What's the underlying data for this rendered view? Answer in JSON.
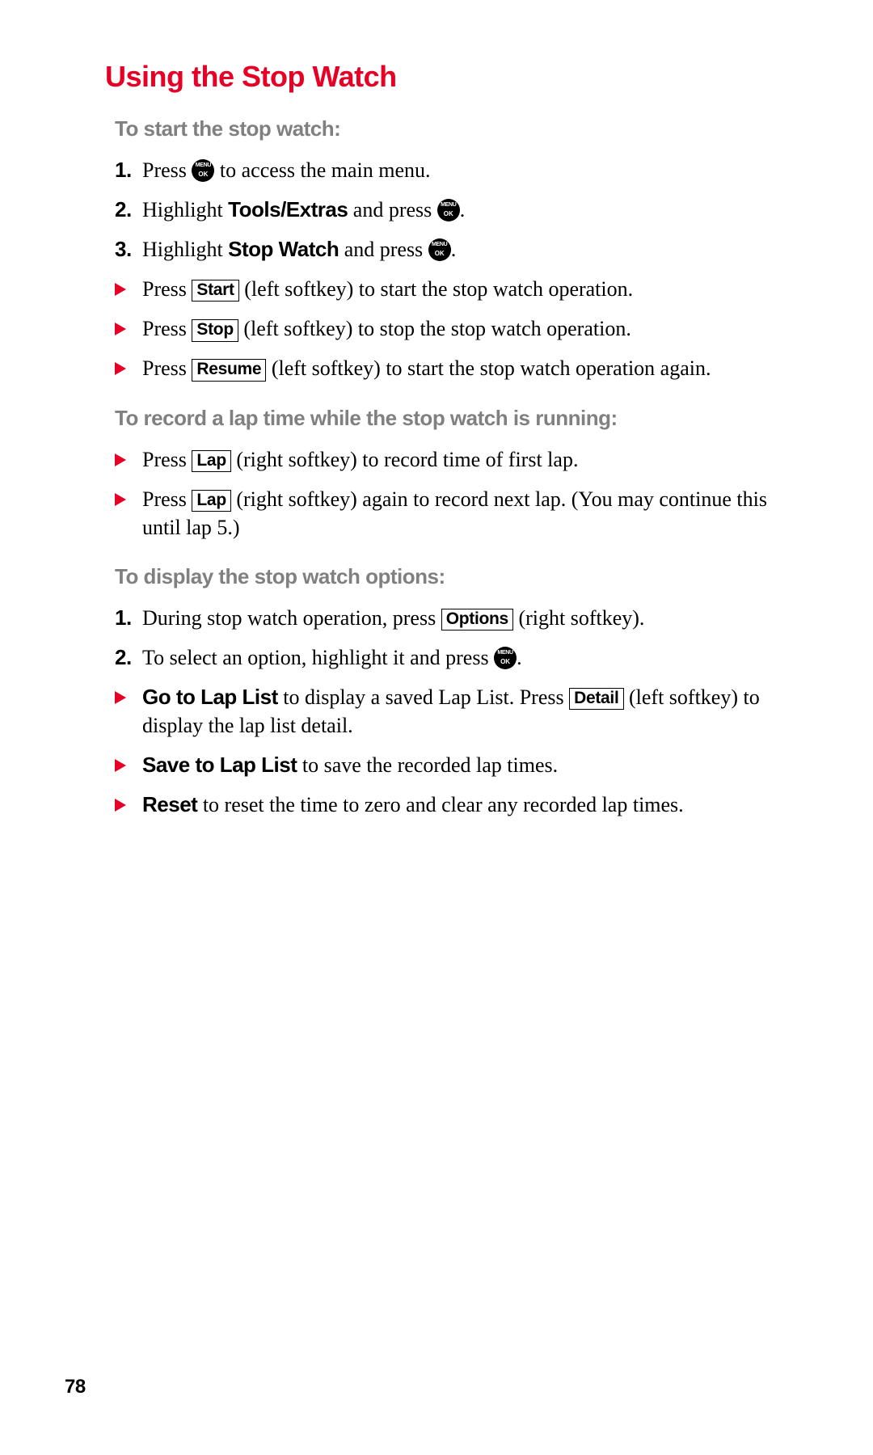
{
  "page": {
    "number": "78",
    "title": "Using the Stop Watch",
    "colors": {
      "accent_red": "#e60026",
      "gray_lead": "#808080",
      "text": "#000000",
      "background": "#ffffff"
    },
    "fonts": {
      "title_family": "Arial Black",
      "body_family": "Georgia",
      "title_size_pt": 27,
      "sublead_size_pt": 19,
      "body_size_pt": 19
    }
  },
  "sections": [
    {
      "lead": "To start the stop watch:",
      "items": [
        {
          "marker_type": "num",
          "marker": "1.",
          "pre": "Press ",
          "icon": "menuok",
          "post": " to access the main menu."
        },
        {
          "marker_type": "num",
          "marker": "2.",
          "pre": "Highlight ",
          "bold": "Tools/Extras",
          "mid": " and press ",
          "icon": "menuok",
          "post": "."
        },
        {
          "marker_type": "num",
          "marker": "3.",
          "pre": "Highlight ",
          "bold": "Stop Watch",
          "mid": " and press ",
          "icon": "menuok",
          "post": "."
        },
        {
          "marker_type": "tri",
          "pre": "Press ",
          "key": "Start",
          "post": " (left softkey) to start the stop watch operation."
        },
        {
          "marker_type": "tri",
          "pre": "Press ",
          "key": "Stop",
          "post": " (left softkey) to stop the stop watch operation."
        },
        {
          "marker_type": "tri",
          "pre": "Press ",
          "key": "Resume",
          "post": " (left softkey) to start the stop watch operation again."
        }
      ]
    },
    {
      "lead": "To record a lap time while the stop watch is running:",
      "items": [
        {
          "marker_type": "tri",
          "pre": "Press ",
          "key": "Lap",
          "post": " (right softkey) to record time of first lap."
        },
        {
          "marker_type": "tri",
          "pre": "Press ",
          "key": "Lap",
          "post": " (right softkey) again to record next lap. (You may continue this until lap 5.)"
        }
      ]
    },
    {
      "lead": "To display the stop watch options:",
      "items": [
        {
          "marker_type": "num",
          "marker": "1.",
          "pre": "During stop watch operation, press ",
          "key": "Options",
          "post": " (right softkey)."
        },
        {
          "marker_type": "num",
          "marker": "2.",
          "pre": "To select an option, highlight it and press ",
          "icon": "menuok",
          "post": "."
        },
        {
          "marker_type": "tri",
          "bold": "Go to Lap List",
          "mid": " to display a saved Lap List. Press ",
          "key": "Detail",
          "post": " (left softkey) to display the lap list detail."
        },
        {
          "marker_type": "tri",
          "bold": "Save to Lap List",
          "post": " to save the recorded lap times."
        },
        {
          "marker_type": "tri",
          "bold": "Reset",
          "post": " to reset the time to zero and clear any recorded lap times."
        }
      ]
    }
  ]
}
